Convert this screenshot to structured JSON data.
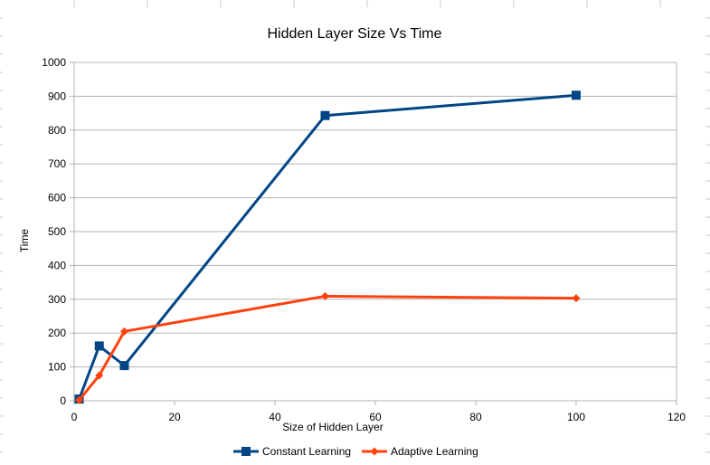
{
  "colors": {
    "constant": "#004586",
    "adaptive": "#ff420e",
    "grid": "#b3b3b3",
    "sheet_grid": "#c8c8c8"
  },
  "chart_data": {
    "type": "line",
    "title": "Hidden Layer Size Vs Time",
    "xlabel": "Size of Hidden Layer",
    "ylabel": "Time",
    "xlim": [
      0,
      120
    ],
    "ylim": [
      0,
      1000
    ],
    "xticks": [
      0,
      20,
      40,
      60,
      80,
      100,
      120
    ],
    "yticks": [
      0,
      100,
      200,
      300,
      400,
      500,
      600,
      700,
      800,
      900,
      1000
    ],
    "grid": "horizontal",
    "legend_position": "bottom",
    "series": [
      {
        "name": "Constant Learning",
        "marker": "square",
        "color": "#004586",
        "x": [
          1,
          5,
          10,
          50,
          100
        ],
        "y": [
          5,
          162,
          104,
          843,
          903
        ]
      },
      {
        "name": "Adaptive Learning",
        "marker": "diamond",
        "color": "#ff420e",
        "x": [
          1,
          5,
          10,
          50,
          100
        ],
        "y": [
          2,
          75,
          205,
          309,
          303
        ]
      }
    ]
  }
}
